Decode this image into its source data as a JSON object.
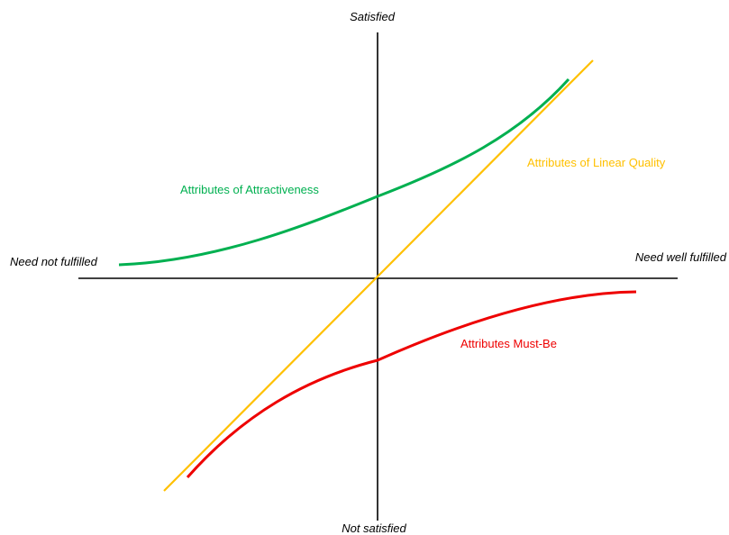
{
  "axes": {
    "top_label": "Satisfied",
    "bottom_label": "Not satisfied",
    "left_label": "Need not fulfilled",
    "right_label": "Need well fulfilled"
  },
  "curves": {
    "attractive": {
      "label": "Attributes of Attractiveness",
      "color": "#00b050"
    },
    "linear": {
      "label": "Attributes of Linear Quality",
      "color": "#ffc000"
    },
    "must_be": {
      "label": "Attributes Must-Be",
      "color": "#ee0000"
    }
  }
}
